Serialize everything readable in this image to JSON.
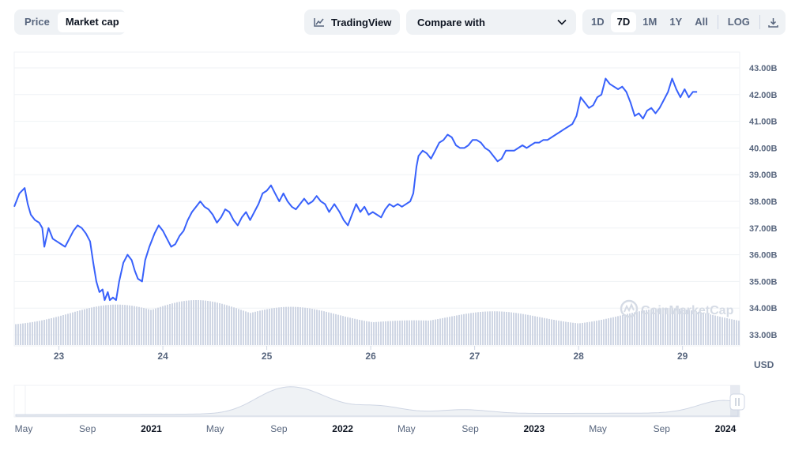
{
  "toolbar": {
    "chart_type_options": [
      "Price",
      "Market cap"
    ],
    "chart_type_selected": "Market cap",
    "tradingview_label": "TradingView",
    "compare_label": "Compare with",
    "range_options": [
      "1D",
      "7D",
      "1M",
      "1Y",
      "All"
    ],
    "range_selected": "7D",
    "log_label": "LOG",
    "icons": {
      "tradingview": "line-chart-icon",
      "compare": "chevron-down-icon",
      "download": "download-icon"
    }
  },
  "watermark": "CoinMarketCap",
  "colors": {
    "line": "#3861fb",
    "volume": "#cfd6e4",
    "grid": "#eff2f5",
    "text": "#58667e"
  },
  "chart_data": {
    "type": "line",
    "unit": "USD",
    "y_ticks": [
      "33.00B",
      "34.00B",
      "35.00B",
      "36.00B",
      "37.00B",
      "38.00B",
      "39.00B",
      "40.00B",
      "41.00B",
      "42.00B",
      "43.00B"
    ],
    "ylim": [
      33.0,
      43.0
    ],
    "x_ticks": [
      {
        "label": "23",
        "x": 23.0
      },
      {
        "label": "24",
        "x": 24.0
      },
      {
        "label": "25",
        "x": 25.0
      },
      {
        "label": "26",
        "x": 26.0
      },
      {
        "label": "27",
        "x": 27.0
      },
      {
        "label": "28",
        "x": 28.0
      },
      {
        "label": "29",
        "x": 29.0
      }
    ],
    "xlim": [
      22.57,
      29.55
    ],
    "series": [
      {
        "points": [
          [
            22.57,
            37.8
          ],
          [
            22.62,
            38.3
          ],
          [
            22.67,
            38.5
          ],
          [
            22.7,
            37.9
          ],
          [
            22.73,
            37.5
          ],
          [
            22.77,
            37.3
          ],
          [
            22.81,
            37.2
          ],
          [
            22.84,
            37.0
          ],
          [
            22.86,
            36.3
          ],
          [
            22.9,
            37.0
          ],
          [
            22.94,
            36.6
          ],
          [
            22.98,
            36.5
          ],
          [
            23.02,
            36.4
          ],
          [
            23.06,
            36.3
          ],
          [
            23.1,
            36.6
          ],
          [
            23.14,
            36.9
          ],
          [
            23.18,
            37.1
          ],
          [
            23.22,
            37.0
          ],
          [
            23.26,
            36.8
          ],
          [
            23.3,
            36.5
          ],
          [
            23.33,
            35.7
          ],
          [
            23.36,
            35.0
          ],
          [
            23.39,
            34.6
          ],
          [
            23.42,
            34.7
          ],
          [
            23.44,
            34.3
          ],
          [
            23.47,
            34.6
          ],
          [
            23.49,
            34.3
          ],
          [
            23.52,
            34.4
          ],
          [
            23.55,
            34.3
          ],
          [
            23.58,
            35.0
          ],
          [
            23.62,
            35.7
          ],
          [
            23.66,
            36.0
          ],
          [
            23.7,
            35.8
          ],
          [
            23.73,
            35.4
          ],
          [
            23.76,
            35.1
          ],
          [
            23.8,
            35.0
          ],
          [
            23.83,
            35.8
          ],
          [
            23.87,
            36.3
          ],
          [
            23.92,
            36.8
          ],
          [
            23.96,
            37.1
          ],
          [
            24.0,
            36.9
          ],
          [
            24.04,
            36.6
          ],
          [
            24.08,
            36.3
          ],
          [
            24.12,
            36.4
          ],
          [
            24.16,
            36.7
          ],
          [
            24.2,
            36.9
          ],
          [
            24.24,
            37.3
          ],
          [
            24.28,
            37.6
          ],
          [
            24.32,
            37.8
          ],
          [
            24.36,
            38.0
          ],
          [
            24.4,
            37.8
          ],
          [
            24.44,
            37.7
          ],
          [
            24.48,
            37.5
          ],
          [
            24.52,
            37.2
          ],
          [
            24.56,
            37.4
          ],
          [
            24.6,
            37.7
          ],
          [
            24.64,
            37.6
          ],
          [
            24.68,
            37.3
          ],
          [
            24.72,
            37.1
          ],
          [
            24.76,
            37.4
          ],
          [
            24.8,
            37.6
          ],
          [
            24.84,
            37.3
          ],
          [
            24.88,
            37.6
          ],
          [
            24.92,
            37.9
          ],
          [
            24.96,
            38.3
          ],
          [
            25.0,
            38.4
          ],
          [
            25.04,
            38.6
          ],
          [
            25.08,
            38.3
          ],
          [
            25.12,
            38.0
          ],
          [
            25.16,
            38.3
          ],
          [
            25.2,
            38.0
          ],
          [
            25.24,
            37.8
          ],
          [
            25.28,
            37.7
          ],
          [
            25.32,
            37.9
          ],
          [
            25.36,
            38.1
          ],
          [
            25.4,
            37.9
          ],
          [
            25.44,
            38.0
          ],
          [
            25.48,
            38.2
          ],
          [
            25.52,
            38.0
          ],
          [
            25.56,
            37.9
          ],
          [
            25.6,
            37.6
          ],
          [
            25.65,
            37.9
          ],
          [
            25.7,
            37.6
          ],
          [
            25.74,
            37.3
          ],
          [
            25.78,
            37.1
          ],
          [
            25.82,
            37.5
          ],
          [
            25.86,
            37.9
          ],
          [
            25.9,
            37.6
          ],
          [
            25.94,
            37.8
          ],
          [
            25.98,
            37.5
          ],
          [
            26.02,
            37.6
          ],
          [
            26.06,
            37.5
          ],
          [
            26.1,
            37.4
          ],
          [
            26.14,
            37.7
          ],
          [
            26.18,
            37.9
          ],
          [
            26.22,
            37.8
          ],
          [
            26.26,
            37.9
          ],
          [
            26.3,
            37.8
          ],
          [
            26.34,
            37.9
          ],
          [
            26.38,
            38.0
          ],
          [
            26.41,
            38.3
          ],
          [
            26.44,
            39.3
          ],
          [
            26.46,
            39.7
          ],
          [
            26.5,
            39.9
          ],
          [
            26.54,
            39.8
          ],
          [
            26.58,
            39.6
          ],
          [
            26.62,
            39.9
          ],
          [
            26.66,
            40.2
          ],
          [
            26.7,
            40.3
          ],
          [
            26.74,
            40.5
          ],
          [
            26.78,
            40.4
          ],
          [
            26.82,
            40.1
          ],
          [
            26.86,
            40.0
          ],
          [
            26.9,
            40.0
          ],
          [
            26.94,
            40.1
          ],
          [
            26.98,
            40.3
          ],
          [
            27.02,
            40.3
          ],
          [
            27.06,
            40.2
          ],
          [
            27.1,
            40.0
          ],
          [
            27.14,
            39.9
          ],
          [
            27.18,
            39.7
          ],
          [
            27.22,
            39.5
          ],
          [
            27.26,
            39.6
          ],
          [
            27.3,
            39.9
          ],
          [
            27.34,
            39.9
          ],
          [
            27.38,
            39.9
          ],
          [
            27.42,
            40.0
          ],
          [
            27.46,
            40.1
          ],
          [
            27.5,
            40.0
          ],
          [
            27.54,
            40.1
          ],
          [
            27.58,
            40.2
          ],
          [
            27.62,
            40.2
          ],
          [
            27.66,
            40.3
          ],
          [
            27.7,
            40.3
          ],
          [
            27.74,
            40.4
          ],
          [
            27.78,
            40.5
          ],
          [
            27.82,
            40.6
          ],
          [
            27.86,
            40.7
          ],
          [
            27.9,
            40.8
          ],
          [
            27.94,
            40.9
          ],
          [
            27.98,
            41.2
          ],
          [
            28.02,
            41.9
          ],
          [
            28.06,
            41.7
          ],
          [
            28.1,
            41.5
          ],
          [
            28.14,
            41.6
          ],
          [
            28.18,
            41.9
          ],
          [
            28.22,
            42.0
          ],
          [
            28.26,
            42.6
          ],
          [
            28.3,
            42.4
          ],
          [
            28.34,
            42.3
          ],
          [
            28.38,
            42.2
          ],
          [
            28.42,
            42.3
          ],
          [
            28.46,
            42.1
          ],
          [
            28.5,
            41.7
          ],
          [
            28.54,
            41.2
          ],
          [
            28.58,
            41.3
          ],
          [
            28.62,
            41.1
          ],
          [
            28.66,
            41.4
          ],
          [
            28.7,
            41.5
          ],
          [
            28.74,
            41.3
          ],
          [
            28.78,
            41.5
          ],
          [
            28.82,
            41.8
          ],
          [
            28.86,
            42.1
          ],
          [
            28.9,
            42.6
          ],
          [
            28.94,
            42.2
          ],
          [
            28.98,
            41.9
          ],
          [
            29.02,
            42.2
          ],
          [
            29.06,
            41.9
          ],
          [
            29.1,
            42.1
          ],
          [
            29.14,
            42.1
          ]
        ]
      }
    ],
    "volume_bars": {
      "min": 0.42,
      "max": 1.0
    },
    "navigator": {
      "x_labels": [
        "May",
        "Sep",
        "2021",
        "May",
        "Sep",
        "2022",
        "May",
        "Sep",
        "2023",
        "May",
        "Sep",
        "2024"
      ],
      "bold_labels": [
        "2021",
        "2022",
        "2023",
        "2024"
      ]
    }
  }
}
